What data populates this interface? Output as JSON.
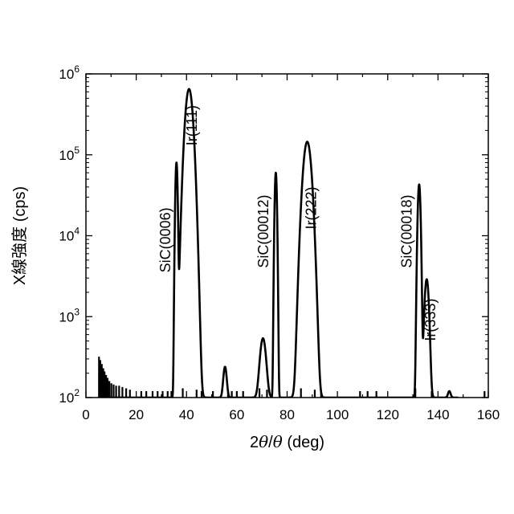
{
  "chart_data": {
    "type": "line",
    "title": "",
    "xlabel_parts": [
      "2",
      "θ",
      "/",
      "θ",
      " (deg)"
    ],
    "ylabel": "X線強度 (cps)",
    "xlim": [
      0,
      160
    ],
    "ylim": [
      100,
      1000000
    ],
    "yscale": "log",
    "xticks": [
      0,
      20,
      40,
      60,
      80,
      100,
      120,
      140,
      160
    ],
    "yticks": [
      {
        "value": 100,
        "base": "10",
        "exp": "2"
      },
      {
        "value": 1000,
        "base": "10",
        "exp": "3"
      },
      {
        "value": 10000,
        "base": "10",
        "exp": "4"
      },
      {
        "value": 100000,
        "base": "10",
        "exp": "5"
      },
      {
        "value": 1000000,
        "base": "10",
        "exp": "6"
      }
    ],
    "grid": false,
    "series": [
      {
        "color": "#000000",
        "peaks": [
          {
            "x": 36.0,
            "y": 80000,
            "w": 0.35
          },
          {
            "x": 41.0,
            "y": 650000,
            "w": 1.2
          },
          {
            "x": 55.3,
            "y": 240,
            "w": 0.6
          },
          {
            "x": 70.4,
            "y": 540,
            "w": 1.0
          },
          {
            "x": 75.5,
            "y": 60000,
            "w": 0.35
          },
          {
            "x": 88.0,
            "y": 145000,
            "w": 1.3
          },
          {
            "x": 132.5,
            "y": 43000,
            "w": 0.45
          },
          {
            "x": 135.5,
            "y": 2900,
            "w": 0.7
          },
          {
            "x": 144.5,
            "y": 120,
            "w": 0.5
          }
        ],
        "noise_spikes": [
          {
            "x": 5.2,
            "y": 320
          },
          {
            "x": 5.7,
            "y": 290
          },
          {
            "x": 6.3,
            "y": 260
          },
          {
            "x": 6.9,
            "y": 230
          },
          {
            "x": 7.4,
            "y": 210
          },
          {
            "x": 8.0,
            "y": 190
          },
          {
            "x": 8.6,
            "y": 175
          },
          {
            "x": 9.3,
            "y": 160
          },
          {
            "x": 10.1,
            "y": 150
          },
          {
            "x": 11.0,
            "y": 145
          },
          {
            "x": 12.0,
            "y": 140
          },
          {
            "x": 13.2,
            "y": 140
          },
          {
            "x": 14.5,
            "y": 135
          },
          {
            "x": 16.0,
            "y": 130
          },
          {
            "x": 17.5,
            "y": 125
          },
          {
            "x": 22.0,
            "y": 120
          },
          {
            "x": 24.0,
            "y": 120
          },
          {
            "x": 26.5,
            "y": 120
          },
          {
            "x": 28.5,
            "y": 120
          },
          {
            "x": 30.5,
            "y": 120
          },
          {
            "x": 32.5,
            "y": 120
          },
          {
            "x": 34.0,
            "y": 120
          },
          {
            "x": 38.5,
            "y": 130
          },
          {
            "x": 44.0,
            "y": 125
          },
          {
            "x": 46.0,
            "y": 120
          },
          {
            "x": 50.5,
            "y": 120
          },
          {
            "x": 56.5,
            "y": 120
          },
          {
            "x": 58.0,
            "y": 120
          },
          {
            "x": 60.0,
            "y": 120
          },
          {
            "x": 62.5,
            "y": 120
          },
          {
            "x": 69.0,
            "y": 130
          },
          {
            "x": 72.0,
            "y": 125
          },
          {
            "x": 85.5,
            "y": 130
          },
          {
            "x": 91.0,
            "y": 125
          },
          {
            "x": 93.5,
            "y": 120
          },
          {
            "x": 109.0,
            "y": 120
          },
          {
            "x": 112.0,
            "y": 120
          },
          {
            "x": 115.5,
            "y": 120
          },
          {
            "x": 131.0,
            "y": 130
          },
          {
            "x": 137.5,
            "y": 120
          },
          {
            "x": 158.5,
            "y": 120
          }
        ]
      }
    ],
    "annotations": [
      {
        "text": "SiC(0006)",
        "x": 33.5,
        "y": 3500
      },
      {
        "text": "Ir(111)",
        "x": 44.0,
        "y": 130000
      },
      {
        "text": "SiC(00012)",
        "x": 72.5,
        "y": 4000
      },
      {
        "text": "Ir(222)",
        "x": 91.5,
        "y": 12000
      },
      {
        "text": "SiC(00018)",
        "x": 129.5,
        "y": 4000
      },
      {
        "text": "Ir(333)",
        "x": 139.0,
        "y": 500
      }
    ]
  }
}
